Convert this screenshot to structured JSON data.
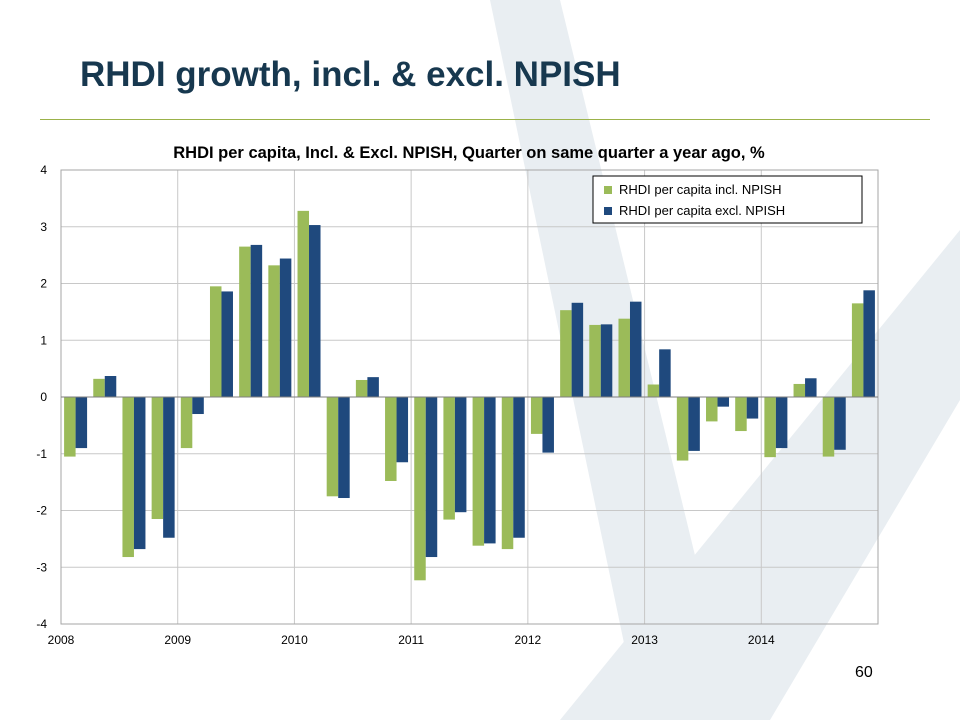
{
  "slide": {
    "title": "RHDI growth, incl. & excl. NPISH",
    "page_number": "60"
  },
  "colors": {
    "series_incl": "#9bbb59",
    "series_excl": "#1f497d",
    "title_color": "#17384f",
    "rule_color": "#9bb24a",
    "background_shape": "#e9eef2"
  },
  "chart_data": {
    "type": "bar",
    "title": "RHDI per capita, Incl. & Excl. NPISH, Quarter on same quarter a year ago, %",
    "xlabel": "",
    "ylabel": "",
    "ylim": [
      -4,
      4
    ],
    "yticks": [
      "4",
      "3",
      "2",
      "1",
      "0",
      "-1",
      "-2",
      "-3",
      "-4"
    ],
    "year_labels": [
      "2008",
      "2009",
      "2010",
      "2011",
      "2012",
      "2013",
      "2014"
    ],
    "categories": [
      "2008 Q1",
      "2008 Q2",
      "2008 Q3",
      "2008 Q4",
      "2009 Q1",
      "2009 Q2",
      "2009 Q3",
      "2009 Q4",
      "2010 Q1",
      "2010 Q2",
      "2010 Q3",
      "2010 Q4",
      "2011 Q1",
      "2011 Q2",
      "2011 Q3",
      "2011 Q4",
      "2012 Q1",
      "2012 Q2",
      "2012 Q3",
      "2012 Q4",
      "2013 Q1",
      "2013 Q2",
      "2013 Q3",
      "2013 Q4",
      "2014 Q1",
      "2014 Q2",
      "2014 Q3",
      "2014 Q4"
    ],
    "series": [
      {
        "name": "RHDI per capita incl. NPISH",
        "values": [
          -1.05,
          0.32,
          -2.82,
          -2.15,
          -0.9,
          1.95,
          2.65,
          2.32,
          3.28,
          -1.75,
          0.3,
          -1.48,
          -3.23,
          -2.16,
          -2.62,
          -2.68,
          -0.65,
          1.53,
          1.27,
          1.38,
          0.22,
          -1.12,
          -0.43,
          -0.6,
          -1.06,
          0.23,
          -1.05,
          1.65
        ]
      },
      {
        "name": "RHDI per capita excl. NPISH",
        "values": [
          -0.9,
          0.37,
          -2.68,
          -2.48,
          -0.3,
          1.86,
          2.68,
          2.44,
          3.03,
          -1.78,
          0.35,
          -1.15,
          -2.82,
          -2.03,
          -2.58,
          -2.48,
          -0.98,
          1.66,
          1.28,
          1.68,
          0.84,
          -0.95,
          -0.17,
          -0.38,
          -0.9,
          0.33,
          -0.93,
          1.88
        ]
      }
    ],
    "grid": true,
    "legend_position": "top-right"
  }
}
